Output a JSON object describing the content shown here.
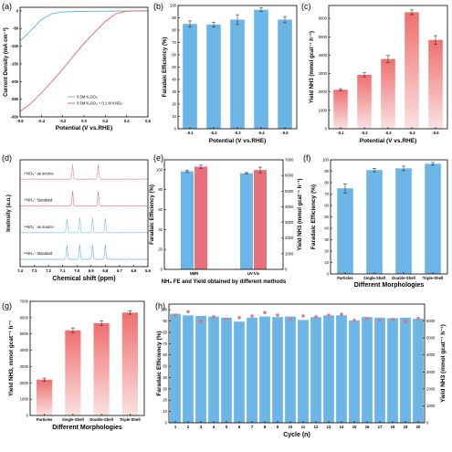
{
  "colors": {
    "blue": "#6BB6E6",
    "red": "#E8707A",
    "bar_top": "#EE6F6F",
    "bar_bottom": "#FBE1E1",
    "blue_bar": "#6BB6E6",
    "err": "#333333",
    "axis": "#000000",
    "nmr_colors": [
      "#F08A8A",
      "#E8707A",
      "#86BFE8",
      "#6BB6E6"
    ]
  },
  "chart_data": [
    {
      "id": "a",
      "panel_label": "(a)",
      "type": "line",
      "xlabel": "Potential (V vs.RHE)",
      "ylabel": "Current Density (mA cm⁻²)",
      "xlim": [
        -0.6,
        0.6
      ],
      "ylim": [
        -300,
        10
      ],
      "xticks": [
        -0.6,
        -0.4,
        -0.2,
        0.0,
        0.2,
        0.4,
        0.6
      ],
      "xtick_labels": [
        "-0.6",
        "-0.4",
        "-0.2",
        "0.0",
        "0.2",
        "0.4",
        "0.6"
      ],
      "yticks": [
        -300,
        -250,
        -200,
        -150,
        -100,
        -50,
        0
      ],
      "ytick_labels": [
        "-300",
        "-250",
        "-200",
        "-150",
        "-100",
        "-50",
        "0"
      ],
      "legend_position": "bottom-right",
      "series": [
        {
          "name": "0.5M K₂SO₄",
          "color": "blue",
          "x": [
            -0.6,
            -0.5,
            -0.4,
            -0.3,
            -0.2,
            -0.1,
            0.0,
            0.1,
            0.2,
            0.3,
            0.4,
            0.5,
            0.6
          ],
          "y": [
            -85,
            -55,
            -25,
            -8,
            -3,
            -2,
            -1.5,
            -1,
            -0.8,
            -0.5,
            -0.3,
            -0.1,
            0
          ]
        },
        {
          "name": "0.5M K₂SO₄ + 0.1 M KNO₃",
          "color": "red",
          "x": [
            -0.6,
            -0.5,
            -0.4,
            -0.3,
            -0.2,
            -0.1,
            0.0,
            0.1,
            0.2,
            0.3,
            0.4,
            0.5,
            0.6
          ],
          "y": [
            -285,
            -262,
            -232,
            -200,
            -165,
            -128,
            -92,
            -60,
            -30,
            -8,
            -1,
            0,
            0
          ]
        }
      ]
    },
    {
      "id": "b",
      "panel_label": "(b)",
      "type": "bar",
      "xlabel": "Potential (V vs.RHE)",
      "ylabel": "Faradaic Efficiency (%)",
      "categories": [
        "-0.1",
        "-0.2",
        "-0.3",
        "-0.4",
        "-0.5"
      ],
      "values": [
        85,
        84.5,
        88.5,
        96.5,
        88.5
      ],
      "errors": [
        2.5,
        2,
        4,
        1.5,
        2.5
      ],
      "ylim": [
        0,
        100
      ],
      "yticks": [
        0,
        10,
        20,
        30,
        40,
        50,
        60,
        70,
        80,
        90,
        100
      ],
      "ytick_labels": [
        "0",
        "10",
        "20",
        "30",
        "40",
        "50",
        "60",
        "70",
        "80",
        "90",
        "100"
      ],
      "bar_color": "blue"
    },
    {
      "id": "c",
      "panel_label": "(c)",
      "type": "bar",
      "xlabel": "Potential (V vs.RHE)",
      "ylabel": "Yield NH3 (mmol gcat⁻¹ h⁻¹)",
      "categories": [
        "-0.1",
        "-0.2",
        "-0.3",
        "-0.4",
        "-0.5"
      ],
      "values": [
        2120,
        2930,
        3790,
        6330,
        4830
      ],
      "errors": [
        60,
        110,
        190,
        130,
        230
      ],
      "ylim": [
        0,
        6700
      ],
      "yticks": [
        0,
        1000,
        2000,
        3000,
        4000,
        5000,
        6000
      ],
      "ytick_labels": [
        "0",
        "1000",
        "2000",
        "3000",
        "4000",
        "5000",
        "6000"
      ],
      "bar_color": "gradient"
    },
    {
      "id": "d",
      "panel_label": "(d)",
      "type": "line",
      "xlabel": "Chemical shift (ppm)",
      "ylabel": "Inetnsity (a.u.)",
      "xlim": [
        7.4,
        6.5
      ],
      "xticks": [
        7.4,
        7.3,
        7.2,
        7.1,
        7.0,
        6.9,
        6.8,
        6.7,
        6.6,
        6.5
      ],
      "xtick_labels": [
        "7.4",
        "7.3",
        "7.2",
        "7.1",
        "7.0",
        "6.9",
        "6.8",
        "6.7",
        "6.6",
        "6.5"
      ],
      "traces": [
        {
          "label": "¹⁵NO₃⁻ as source",
          "color_index": 0,
          "peaks": [
            7.03,
            6.85
          ]
        },
        {
          "label": "¹⁵NH₄⁺ Standard",
          "color_index": 1,
          "peaks": [
            7.03,
            6.85
          ]
        },
        {
          "label": "¹⁴NO₃⁻ as source",
          "color_index": 2,
          "peaks": [
            7.07,
            6.98,
            6.89,
            6.8
          ]
        },
        {
          "label": "¹⁴NH₄⁺ Standard",
          "color_index": 3,
          "peaks": [
            7.07,
            6.98,
            6.89,
            6.8
          ]
        }
      ]
    },
    {
      "id": "e",
      "panel_label": "(e)",
      "type": "bar",
      "title": "NH₃ FE and Yield obtained by different methods",
      "categories": [
        "NMR",
        "UV-Vis"
      ],
      "ylabel_left": "Faradaic Efficiency (%)",
      "ylabel_right": "Yield NH3 (mmol gcat⁻¹ h⁻¹)",
      "series": [
        {
          "name": "Faradaic Efficiency (%)",
          "values": [
            98.5,
            96.5
          ],
          "errors": [
            1.2,
            0.8
          ],
          "color": "blue",
          "axis": "left"
        },
        {
          "name": "Yield NH3",
          "values": [
            6560,
            6350
          ],
          "errors": [
            100,
            180
          ],
          "color": "red",
          "axis": "right"
        }
      ],
      "ylim_left": [
        0,
        110
      ],
      "ylim_right": [
        0,
        7000
      ],
      "yticks_left": [
        0,
        20,
        40,
        60,
        80,
        100
      ],
      "ytick_labels_left": [
        "0",
        "20",
        "40",
        "60",
        "80",
        "100"
      ],
      "yticks_right": [
        0,
        1000,
        2000,
        3000,
        4000,
        5000,
        6000,
        7000
      ],
      "ytick_labels_right": [
        "0",
        "1000",
        "2000",
        "3000",
        "4000",
        "5000",
        "6000",
        "7000"
      ]
    },
    {
      "id": "f",
      "panel_label": "(f)",
      "type": "bar",
      "xlabel": "Different Morphologies",
      "ylabel": "Faradaic Efficiency (%)",
      "categories": [
        "Particles",
        "Single-Shell",
        "Double-Shell",
        "Triple-Shell"
      ],
      "values": [
        75,
        91,
        92.5,
        96.5
      ],
      "errors": [
        4,
        1.5,
        2,
        1.2
      ],
      "ylim": [
        0,
        100
      ],
      "yticks": [
        0,
        10,
        20,
        30,
        40,
        50,
        60,
        70,
        80,
        90,
        100
      ],
      "ytick_labels": [
        "0",
        "10",
        "20",
        "30",
        "40",
        "50",
        "60",
        "70",
        "80",
        "90",
        "100"
      ],
      "bar_color": "blue"
    },
    {
      "id": "g",
      "panel_label": "(g)",
      "type": "bar",
      "xlabel": "Different Morphologies",
      "ylabel": "Yield NH3, mmol gcat⁻¹ h⁻¹",
      "categories": [
        "Particles",
        "Single-Shell",
        "Double-Shell",
        "Triple-Shell"
      ],
      "values": [
        2200,
        5220,
        5660,
        6310
      ],
      "errors": [
        90,
        150,
        130,
        100
      ],
      "ylim": [
        0,
        7000
      ],
      "yticks": [
        0,
        1000,
        2000,
        3000,
        4000,
        5000,
        6000,
        7000
      ],
      "ytick_labels": [
        "0",
        "1000",
        "2000",
        "3000",
        "4000",
        "5000",
        "6000",
        "7000"
      ],
      "bar_color": "gradient"
    },
    {
      "id": "h",
      "panel_label": "(h)",
      "type": "bar",
      "xlabel": "Cycle (n)",
      "ylabel_left": "Faradaic Efficiency (%)",
      "ylabel_right": "Yield NH3 (mmol gcat⁻¹ h⁻¹)",
      "categories": [
        "1",
        "2",
        "3",
        "4",
        "5",
        "6",
        "7",
        "8",
        "9",
        "10",
        "11",
        "12",
        "13",
        "14",
        "15",
        "16",
        "17",
        "18",
        "19",
        "20"
      ],
      "ylim_left": [
        0,
        105
      ],
      "ylim_right": [
        0,
        7000
      ],
      "yticks_left": [
        0,
        10,
        20,
        30,
        40,
        50,
        60,
        70,
        80,
        90,
        100
      ],
      "ytick_labels_left": [
        "0",
        "10",
        "20",
        "30",
        "40",
        "50",
        "60",
        "70",
        "80",
        "90",
        "100"
      ],
      "yticks_right": [
        0,
        1000,
        2000,
        3000,
        4000,
        5000,
        6000
      ],
      "ytick_labels_right": [
        "0",
        "1000",
        "2000",
        "3000",
        "4000",
        "5000",
        "6000"
      ],
      "series": [
        {
          "name": "Faradaic Efficiency (%)",
          "color": "blue",
          "axis": "left",
          "values": [
            96.5,
            95,
            94.5,
            94,
            93,
            89.5,
            93,
            94,
            93.5,
            94,
            91,
            93.5,
            95,
            95,
            90.5,
            93.5,
            93,
            92.5,
            93,
            92
          ]
        },
        {
          "name": "Yield NH3",
          "color": "red",
          "axis": "right",
          "values": [
            6350,
            6550,
            6000,
            6250,
            6100,
            6200,
            6300,
            6500,
            6350,
            6100,
            6300,
            6250,
            6350,
            6400,
            6050,
            6150,
            6050,
            6100,
            6000,
            6150
          ]
        }
      ]
    }
  ]
}
